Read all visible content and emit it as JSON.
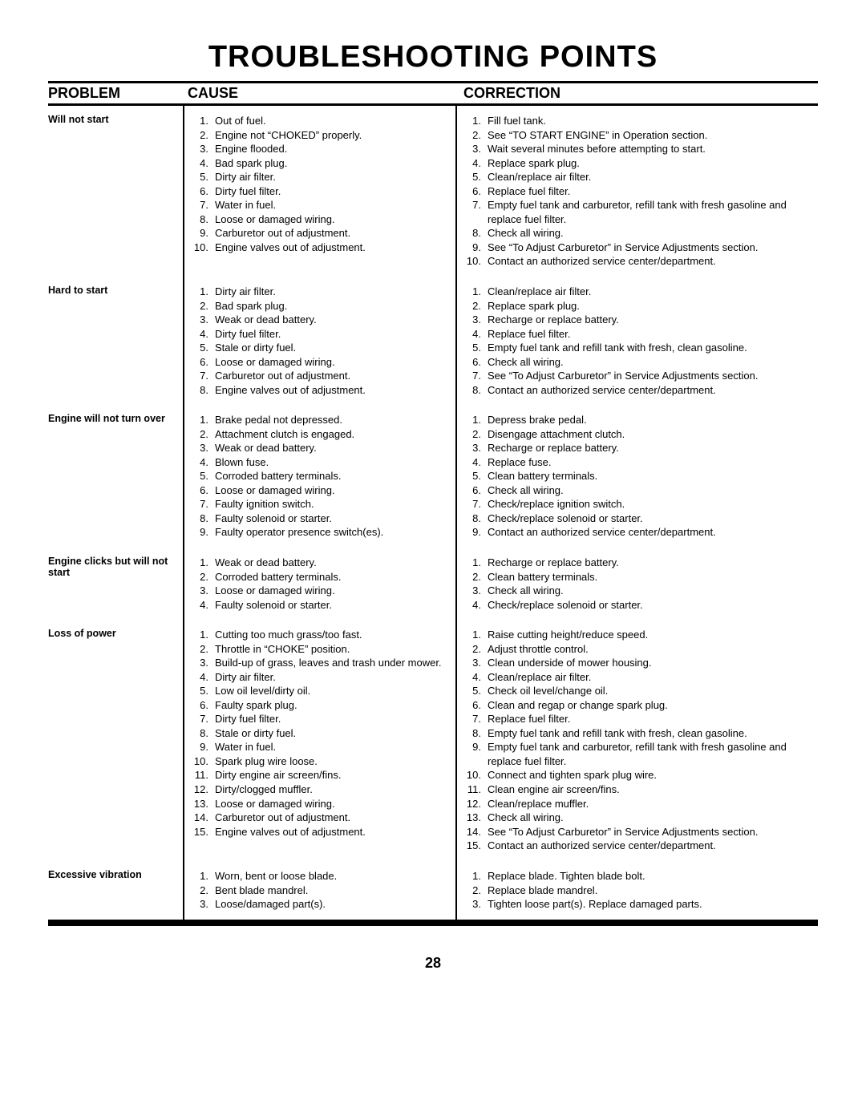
{
  "title": "TROUBLESHOOTING POINTS",
  "headers": {
    "problem": "PROBLEM",
    "cause": "CAUSE",
    "correction": "CORRECTION"
  },
  "page_number": "28",
  "rows": [
    {
      "problem": "Will not start",
      "causes": [
        "Out of fuel.",
        "Engine not “CHOKED” properly.",
        "Engine flooded.",
        "Bad spark plug.",
        "Dirty air filter.",
        "Dirty fuel filter.",
        "Water in fuel.",
        "Loose or damaged wiring.",
        "Carburetor out of adjustment.",
        "Engine valves out of adjustment."
      ],
      "corrections": [
        "Fill fuel tank.",
        "See “TO START ENGINE” in Operation section.",
        "Wait several minutes before attempting to start.",
        "Replace spark plug.",
        "Clean/replace air filter.",
        "Replace fuel filter.",
        "Empty fuel tank and carburetor, refill tank with fresh gasoline and replace fuel filter.",
        "Check all wiring.",
        "See “To Adjust Carburetor” in Service Adjustments section.",
        "Contact an authorized service center/department."
      ]
    },
    {
      "problem": "Hard to start",
      "causes": [
        "Dirty air filter.",
        "Bad spark plug.",
        "Weak or dead battery.",
        "Dirty fuel filter.",
        "Stale or dirty fuel.",
        "Loose or damaged wiring.",
        "Carburetor out of adjustment.",
        "Engine valves out of adjustment."
      ],
      "corrections": [
        "Clean/replace air filter.",
        "Replace spark plug.",
        "Recharge or replace battery.",
        "Replace fuel filter.",
        "Empty fuel tank and refill tank with fresh, clean gasoline.",
        "Check all wiring.",
        "See “To Adjust Carburetor” in Service Adjustments section.",
        "Contact an authorized service center/department."
      ]
    },
    {
      "problem": "Engine will not turn over",
      "causes": [
        "Brake pedal not depressed.",
        "Attachment clutch is engaged.",
        "Weak or dead battery.",
        "Blown fuse.",
        "Corroded battery terminals.",
        "Loose or damaged wiring.",
        "Faulty ignition switch.",
        "Faulty solenoid or starter.",
        "Faulty operator presence switch(es)."
      ],
      "corrections": [
        "Depress brake pedal.",
        "Disengage attachment clutch.",
        "Recharge or replace battery.",
        "Replace fuse.",
        "Clean battery terminals.",
        "Check all wiring.",
        "Check/replace ignition switch.",
        "Check/replace solenoid or starter.",
        "Contact an authorized service center/department."
      ]
    },
    {
      "problem": "Engine clicks but will not start",
      "causes": [
        "Weak or dead battery.",
        "Corroded battery terminals.",
        "Loose or damaged wiring.",
        "Faulty solenoid or starter."
      ],
      "corrections": [
        "Recharge or replace battery.",
        "Clean battery terminals.",
        "Check all wiring.",
        "Check/replace solenoid or starter."
      ]
    },
    {
      "problem": "Loss of power",
      "causes": [
        "Cutting too much grass/too fast.",
        "Throttle in “CHOKE” position.",
        "Build-up of grass, leaves and trash under mower.",
        "Dirty air filter.",
        "Low oil level/dirty oil.",
        "Faulty spark plug.",
        "Dirty fuel filter.",
        "Stale or dirty fuel.",
        "Water in fuel.",
        "Spark plug wire loose.",
        "Dirty engine air screen/fins.",
        "Dirty/clogged muffler.",
        "Loose or damaged wiring.",
        "Carburetor out of adjustment.",
        "Engine valves out of adjustment."
      ],
      "corrections": [
        "Raise cutting height/reduce speed.",
        "Adjust throttle control.",
        "Clean underside of mower housing.",
        "Clean/replace air filter.",
        "Check oil level/change oil.",
        "Clean and regap or change spark plug.",
        "Replace fuel filter.",
        "Empty fuel tank and refill tank with fresh, clean gasoline.",
        "Empty fuel tank and carburetor, refill tank with fresh gasoline and replace fuel filter.",
        "Connect and tighten spark plug wire.",
        "Clean engine air screen/fins.",
        "Clean/replace muffler.",
        "Check all wiring.",
        "See “To Adjust Carburetor” in Service Adjustments section.",
        "Contact an authorized service center/department."
      ]
    },
    {
      "problem": "Excessive vibration",
      "causes": [
        "Worn, bent or loose blade.",
        "Bent blade mandrel.",
        "Loose/damaged part(s)."
      ],
      "corrections": [
        "Replace blade.  Tighten blade bolt.",
        "Replace blade mandrel.",
        "Tighten loose part(s).  Replace damaged parts."
      ]
    }
  ]
}
